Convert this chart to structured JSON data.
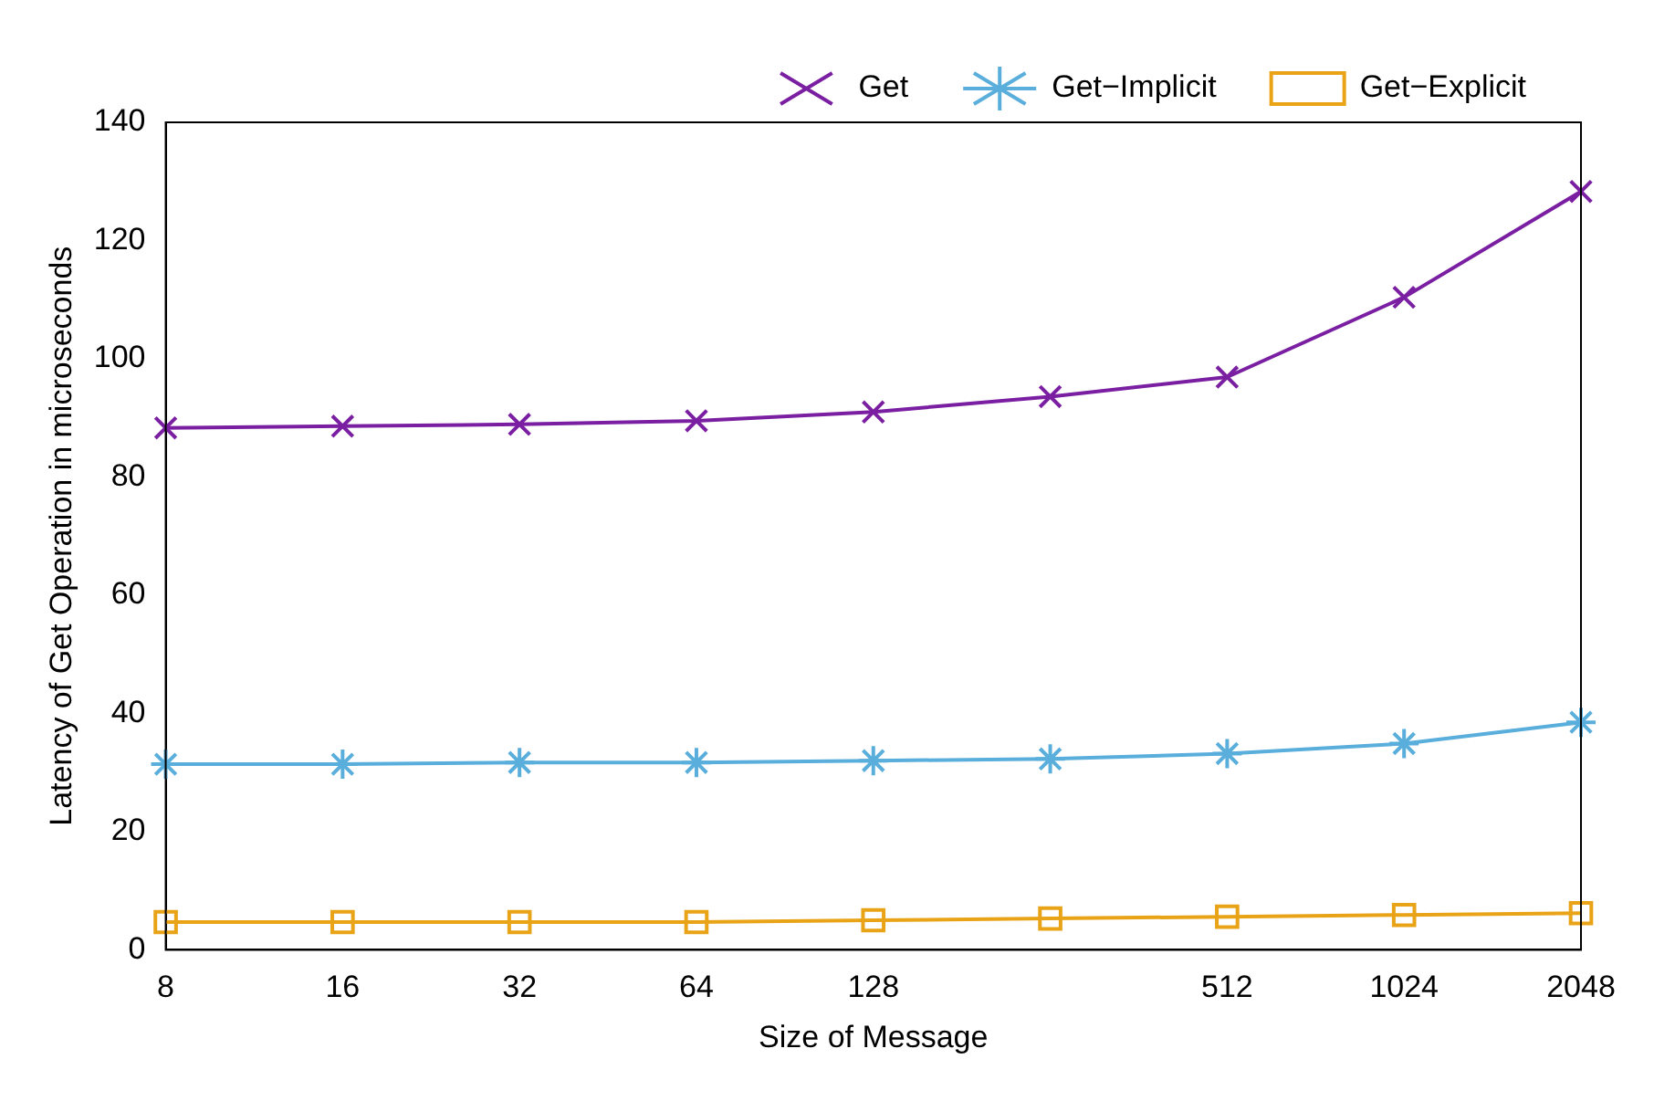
{
  "chart_data": {
    "type": "line",
    "xlabel": "Size of Message",
    "ylabel": "Latency of Get Operation in microseconds",
    "categories": [
      "8",
      "16",
      "32",
      "64",
      "128",
      null,
      "512",
      "1024",
      "2048"
    ],
    "series": [
      {
        "name": "Get",
        "color": "#7b1fa2",
        "marker": "cross",
        "values": [
          88.3,
          88.6,
          88.9,
          89.5,
          91,
          93.6,
          96.9,
          110.4,
          128.3
        ]
      },
      {
        "name": "Get−Implicit",
        "color": "#5aaedc",
        "marker": "cross",
        "values": [
          31.4,
          31.4,
          31.7,
          31.7,
          32,
          32.3,
          33.2,
          34.9,
          38.5
        ]
      },
      {
        "name": "Get−Explicit",
        "color": "#e8a317",
        "marker": "square",
        "values": [
          4.7,
          4.7,
          4.7,
          4.7,
          5,
          5.3,
          5.6,
          5.9,
          6.2
        ]
      }
    ],
    "ylim": [
      0,
      140
    ],
    "yticks": [
      0,
      20,
      40,
      60,
      80,
      100,
      120,
      140
    ],
    "grid": false,
    "legend": "top",
    "line_style": "solid"
  }
}
